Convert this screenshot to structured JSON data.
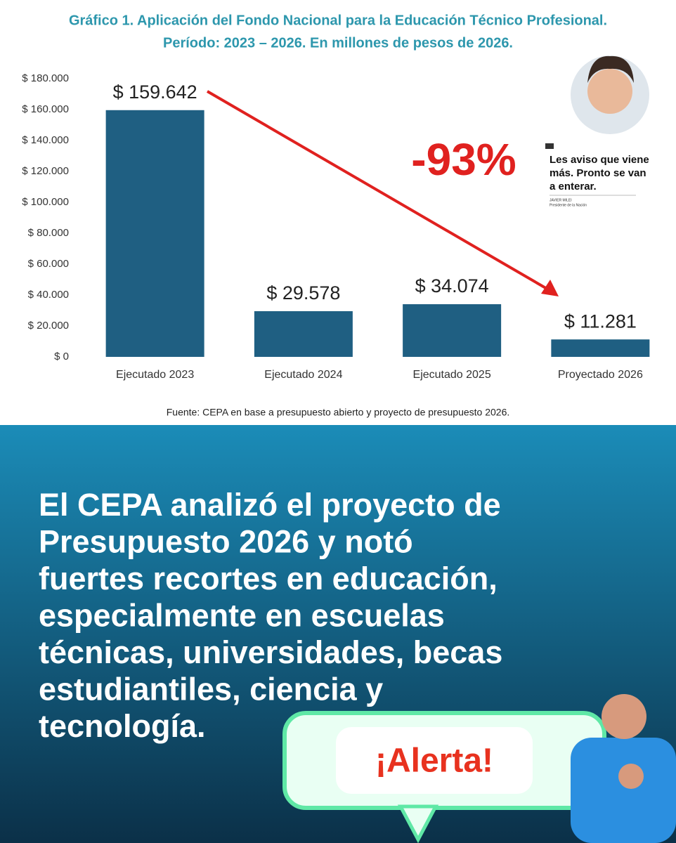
{
  "chart_data": {
    "type": "bar",
    "title": "Gráfico 1. Aplicación del Fondo Nacional para la Educación Técnico Profesional.",
    "subtitle": "Período: 2023 – 2026. En millones de pesos de 2026.",
    "categories": [
      "Ejecutado 2023",
      "Ejecutado 2024",
      "Ejecutado 2025",
      "Proyectado 2026"
    ],
    "values": [
      159642,
      29578,
      34074,
      11281
    ],
    "value_labels": [
      "$ 159.642",
      "$ 29.578",
      "$ 34.074",
      "$ 11.281"
    ],
    "color": "#1f5f82",
    "ylim": [
      0,
      180000
    ],
    "yticks": [
      {
        "value": 0,
        "label": "$ 0"
      },
      {
        "value": 20000,
        "label": "$ 20.000"
      },
      {
        "value": 40000,
        "label": "$ 40.000"
      },
      {
        "value": 60000,
        "label": "$ 60.000"
      },
      {
        "value": 80000,
        "label": "$ 80.000"
      },
      {
        "value": 100000,
        "label": "$ 100.000"
      },
      {
        "value": 120000,
        "label": "$ 120.000"
      },
      {
        "value": 140000,
        "label": "$ 140.000"
      },
      {
        "value": 160000,
        "label": "$ 160.000"
      },
      {
        "value": 180000,
        "label": "$ 180.000"
      }
    ],
    "annotation": "-93%",
    "source": "Fuente: CEPA en base a presupuesto abierto y proyecto de presupuesto 2026."
  },
  "quote": {
    "text_lines": [
      "Les aviso que viene",
      "más. Pronto se van",
      "a enterar."
    ],
    "author": "JAVIER MILEI",
    "role": "Presidente de la Nación"
  },
  "body_lines": [
    "El CEPA analizó el proyecto de",
    "Presupuesto 2026 y notó",
    "fuertes recortes en educación,",
    "especialmente en escuelas",
    "técnicas, universidades, becas",
    "estudiantiles, ciencia y",
    "tecnología."
  ],
  "alert": "¡Alerta!"
}
